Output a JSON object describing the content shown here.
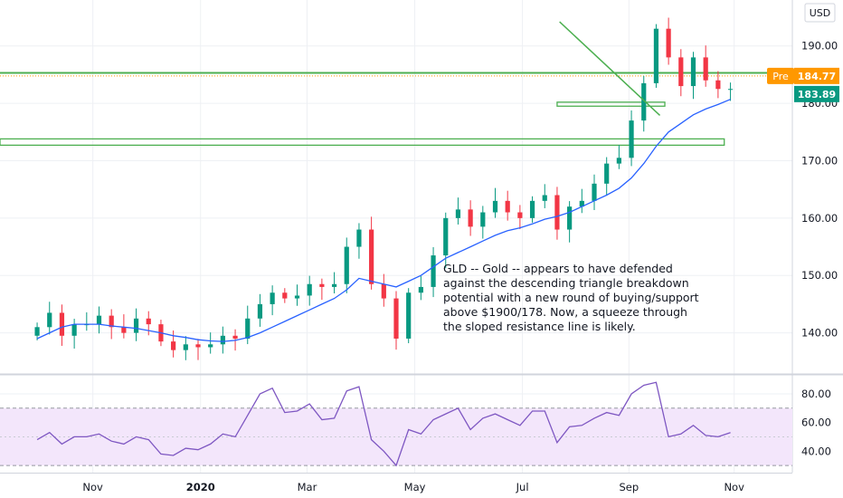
{
  "chart_data": {
    "type": "candlestick",
    "symbol": "GLD",
    "currency_badge": "USD",
    "price_axis": {
      "ticks": [
        "190.00",
        "180.00",
        "170.00",
        "160.00",
        "150.00",
        "140.00"
      ],
      "ylim": [
        133,
        198
      ]
    },
    "time_axis": {
      "labels": [
        "Nov",
        "2020",
        "Mar",
        "May",
        "Jul",
        "Sep",
        "Nov"
      ],
      "label_weeks": [
        4.5,
        13.2,
        21.8,
        30.5,
        39.2,
        47.8,
        56.3
      ],
      "xlim": [
        -3,
        61
      ]
    },
    "price_tags": [
      {
        "label": "Pre",
        "value": "184.77",
        "color": "#ff9800"
      },
      {
        "value": "183.89",
        "color": "#089981"
      }
    ],
    "weekly_closes": [
      141,
      143.5,
      139.5,
      141.5,
      141.5,
      143,
      141,
      140,
      142.5,
      141.5,
      138.5,
      137,
      138,
      137.5,
      138,
      139.5,
      139,
      142.5,
      145,
      147,
      146,
      146.5,
      148.5,
      148,
      148.5,
      155,
      158,
      148.5,
      146,
      139,
      147,
      148,
      153.5,
      160,
      161.5,
      158.5,
      161,
      163,
      161,
      160,
      163,
      164,
      158,
      162,
      163,
      166,
      169.5,
      170.5,
      177,
      183.5,
      193,
      188,
      183,
      188,
      184,
      182.5,
      182.5
    ],
    "moving_average": {
      "color": "#2962ff",
      "values": [
        139,
        140,
        141,
        141.5,
        141.5,
        141.5,
        141.2,
        141,
        140.8,
        140.4,
        140,
        139.5,
        139.2,
        138.8,
        138.6,
        138.5,
        138.7,
        139.2,
        140,
        141,
        142,
        143,
        144,
        145,
        146,
        147.5,
        149.5,
        149,
        148.5,
        148,
        149,
        150,
        151.5,
        153,
        154,
        155,
        156,
        157,
        157.8,
        158.3,
        159,
        159.8,
        160.3,
        161,
        162,
        163,
        164,
        165.2,
        167,
        169.5,
        172.5,
        175,
        176.5,
        178,
        179,
        179.8,
        180.7
      ]
    },
    "rsi": {
      "axis_ticks": [
        "80.00",
        "60.00",
        "40.00"
      ],
      "ylim": [
        25,
        92
      ],
      "band": [
        30,
        70
      ],
      "values": [
        48,
        53,
        45,
        50,
        50,
        52,
        47,
        45,
        50,
        48,
        38,
        37,
        42,
        41,
        45,
        52,
        50,
        65,
        80,
        84,
        67,
        68,
        73,
        62,
        63,
        82,
        85,
        48,
        40,
        30,
        55,
        52,
        62,
        66,
        70,
        55,
        63,
        66,
        62,
        58,
        68,
        68,
        46,
        57,
        58,
        63,
        67,
        65,
        80,
        86,
        88,
        50,
        52,
        58,
        51,
        50,
        53
      ]
    },
    "levels": {
      "horizontal_resistance": 185.3,
      "support_zone": [
        179.5,
        180.2
      ],
      "lower_zone": [
        172.7,
        173.8
      ]
    },
    "trendline": {
      "from": [
        42.2,
        194.2
      ],
      "to": [
        50.3,
        177.9
      ]
    }
  },
  "annotation": {
    "lines": [
      "GLD -- Gold -- appears to have defended",
      "against the descending triangle breakdown",
      "potential with a new round of buying/support",
      "above $1900/178. Now, a squeeze through",
      "the sloped resistance line is likely."
    ]
  },
  "colors": {
    "up": "#089981",
    "down": "#f23645",
    "levels": "#4caf50",
    "rsi": "#7e57c2",
    "rsi_band": "#f3e6fb"
  }
}
